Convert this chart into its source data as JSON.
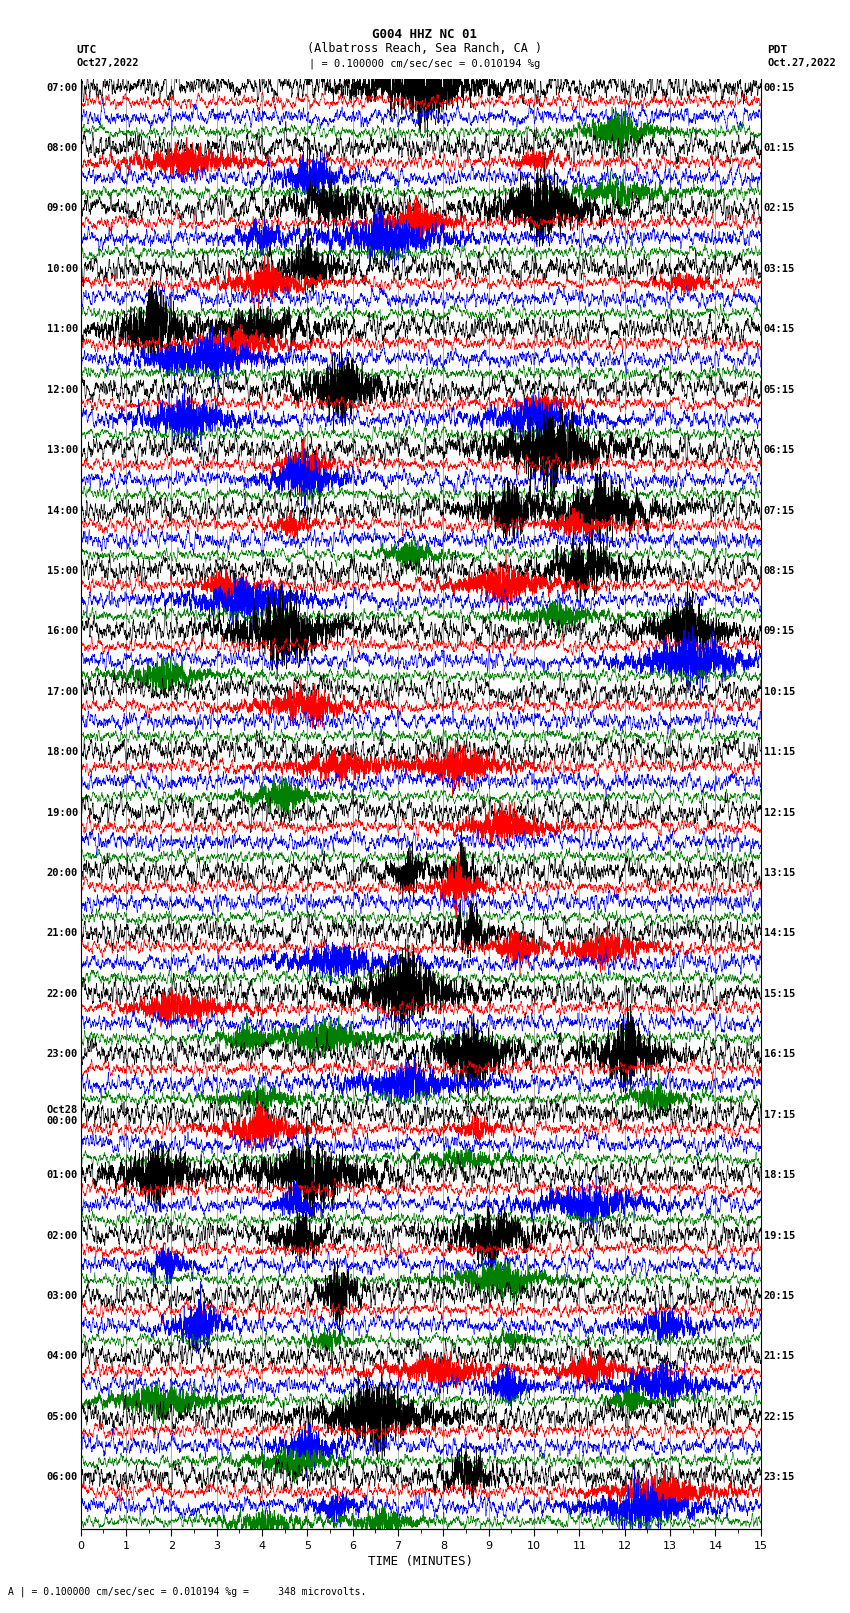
{
  "title_line1": "G004 HHZ NC 01",
  "title_line2": "(Albatross Reach, Sea Ranch, CA )",
  "scale_text": "| = 0.100000 cm/sec/sec = 0.010194 %g",
  "left_label": "UTC",
  "right_label": "PDT",
  "date_left": "Oct27,2022",
  "date_right": "Oct.27,2022",
  "xlabel": "TIME (MINUTES)",
  "footer": "A | = 0.100000 cm/sec/sec = 0.010194 %g =     348 microvolts.",
  "utc_times": [
    "07:00",
    "08:00",
    "09:00",
    "10:00",
    "11:00",
    "12:00",
    "13:00",
    "14:00",
    "15:00",
    "16:00",
    "17:00",
    "18:00",
    "19:00",
    "20:00",
    "21:00",
    "22:00",
    "23:00",
    "Oct28\n00:00",
    "01:00",
    "02:00",
    "03:00",
    "04:00",
    "05:00",
    "06:00"
  ],
  "pdt_times": [
    "00:15",
    "01:15",
    "02:15",
    "03:15",
    "04:15",
    "05:15",
    "06:15",
    "07:15",
    "08:15",
    "09:15",
    "10:15",
    "11:15",
    "12:15",
    "13:15",
    "14:15",
    "15:15",
    "16:15",
    "17:15",
    "18:15",
    "19:15",
    "20:15",
    "21:15",
    "22:15",
    "23:15"
  ],
  "num_hours": 24,
  "colors": [
    "black",
    "red",
    "blue",
    "green"
  ],
  "x_max": 15,
  "background_color": "white",
  "fig_width": 8.5,
  "fig_height": 16.13,
  "dpi": 100,
  "vgrid_color": "#888888",
  "vgrid_lw": 0.5,
  "trace_lw": 0.4,
  "trace_amp_base": 0.38,
  "trace_amp_scale": [
    1.0,
    0.55,
    0.7,
    0.5
  ]
}
